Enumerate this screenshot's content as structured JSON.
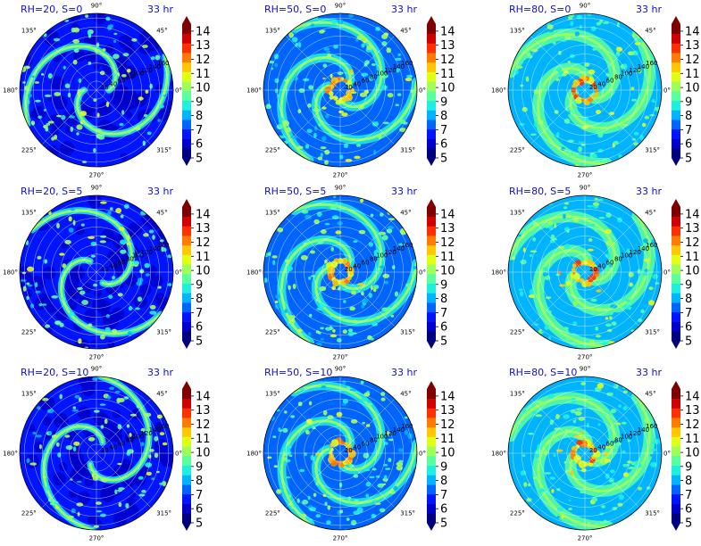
{
  "figure": {
    "time_label": "33 hr",
    "colormap": [
      "#00007f",
      "#0000c8",
      "#0014ff",
      "#0064ff",
      "#00b4ff",
      "#1ef0e0",
      "#5aff9e",
      "#9eff5a",
      "#e0ff16",
      "#ffc800",
      "#ff7c00",
      "#ff3000",
      "#d00000",
      "#7f0000"
    ]
  },
  "chart_data": [
    {
      "type": "polar-heatmap",
      "title": "RH=20, S=0",
      "time": "33 hr",
      "angle_ticks": [
        "0°",
        "45°",
        "90°",
        "135°",
        "180°",
        "225°",
        "270°",
        "315°"
      ],
      "radial_ticks": [
        20,
        40,
        60,
        80,
        100,
        120,
        140,
        160
      ],
      "colorbar_ticks": [
        5,
        6,
        7,
        8,
        9,
        10,
        11,
        12,
        13,
        14
      ],
      "colorbar_range": [
        5,
        14.5
      ]
    },
    {
      "type": "polar-heatmap",
      "title": "RH=50, S=0",
      "time": "33 hr",
      "angle_ticks": [
        "0°",
        "45°",
        "90°",
        "135°",
        "180°",
        "225°",
        "270°",
        "315°"
      ],
      "radial_ticks": [
        20,
        40,
        60,
        80,
        100,
        120,
        140,
        160
      ],
      "colorbar_ticks": [
        5,
        6,
        7,
        8,
        9,
        10,
        11,
        12,
        13,
        14
      ],
      "colorbar_range": [
        5,
        14.5
      ]
    },
    {
      "type": "polar-heatmap",
      "title": "RH=80, S=0",
      "time": "33 hr",
      "angle_ticks": [
        "0°",
        "45°",
        "90°",
        "135°",
        "180°",
        "225°",
        "270°",
        "315°"
      ],
      "radial_ticks": [
        20,
        40,
        60,
        80,
        100,
        120,
        140,
        160
      ],
      "colorbar_ticks": [
        5,
        6,
        7,
        8,
        9,
        10,
        11,
        12,
        13,
        14
      ],
      "colorbar_range": [
        5,
        14.5
      ]
    },
    {
      "type": "polar-heatmap",
      "title": "RH=20, S=5",
      "time": "33 hr",
      "angle_ticks": [
        "0°",
        "45°",
        "90°",
        "135°",
        "180°",
        "225°",
        "270°",
        "315°"
      ],
      "radial_ticks": [
        20,
        40,
        60,
        80,
        100,
        120,
        140,
        160
      ],
      "colorbar_ticks": [
        5,
        6,
        7,
        8,
        9,
        10,
        11,
        12,
        13,
        14
      ],
      "colorbar_range": [
        5,
        14.5
      ]
    },
    {
      "type": "polar-heatmap",
      "title": "RH=50, S=5",
      "time": "33 hr",
      "angle_ticks": [
        "0°",
        "45°",
        "90°",
        "135°",
        "180°",
        "225°",
        "270°",
        "315°"
      ],
      "radial_ticks": [
        20,
        40,
        60,
        80,
        100,
        120,
        140,
        160
      ],
      "colorbar_ticks": [
        5,
        6,
        7,
        8,
        9,
        10,
        11,
        12,
        13,
        14
      ],
      "colorbar_range": [
        5,
        14.5
      ]
    },
    {
      "type": "polar-heatmap",
      "title": "RH=80, S=5",
      "time": "33 hr",
      "angle_ticks": [
        "0°",
        "45°",
        "90°",
        "135°",
        "180°",
        "225°",
        "270°",
        "315°"
      ],
      "radial_ticks": [
        20,
        40,
        60,
        80,
        100,
        120,
        140,
        160
      ],
      "colorbar_ticks": [
        5,
        6,
        7,
        8,
        9,
        10,
        11,
        12,
        13,
        14
      ],
      "colorbar_range": [
        5,
        14.5
      ]
    },
    {
      "type": "polar-heatmap",
      "title": "RH=20, S=10",
      "time": "33 hr",
      "angle_ticks": [
        "0°",
        "45°",
        "90°",
        "135°",
        "180°",
        "225°",
        "270°",
        "315°"
      ],
      "radial_ticks": [
        20,
        40,
        60,
        80,
        100,
        120,
        140,
        160
      ],
      "colorbar_ticks": [
        5,
        6,
        7,
        8,
        9,
        10,
        11,
        12,
        13,
        14
      ],
      "colorbar_range": [
        5,
        14.5
      ]
    },
    {
      "type": "polar-heatmap",
      "title": "RH=50, S=10",
      "time": "33 hr",
      "angle_ticks": [
        "0°",
        "45°",
        "90°",
        "135°",
        "180°",
        "225°",
        "270°",
        "315°"
      ],
      "radial_ticks": [
        20,
        40,
        60,
        80,
        100,
        120,
        140,
        160
      ],
      "colorbar_ticks": [
        5,
        6,
        7,
        8,
        9,
        10,
        11,
        12,
        13,
        14
      ],
      "colorbar_range": [
        5,
        14.5
      ]
    },
    {
      "type": "polar-heatmap",
      "title": "RH=80, S=10",
      "time": "33 hr",
      "angle_ticks": [
        "0°",
        "45°",
        "90°",
        "135°",
        "180°",
        "225°",
        "270°",
        "315°"
      ],
      "radial_ticks": [
        20,
        40,
        60,
        80,
        100,
        120,
        140,
        160
      ],
      "colorbar_ticks": [
        5,
        6,
        7,
        8,
        9,
        10,
        11,
        12,
        13,
        14
      ],
      "colorbar_range": [
        5,
        14.5
      ]
    }
  ]
}
